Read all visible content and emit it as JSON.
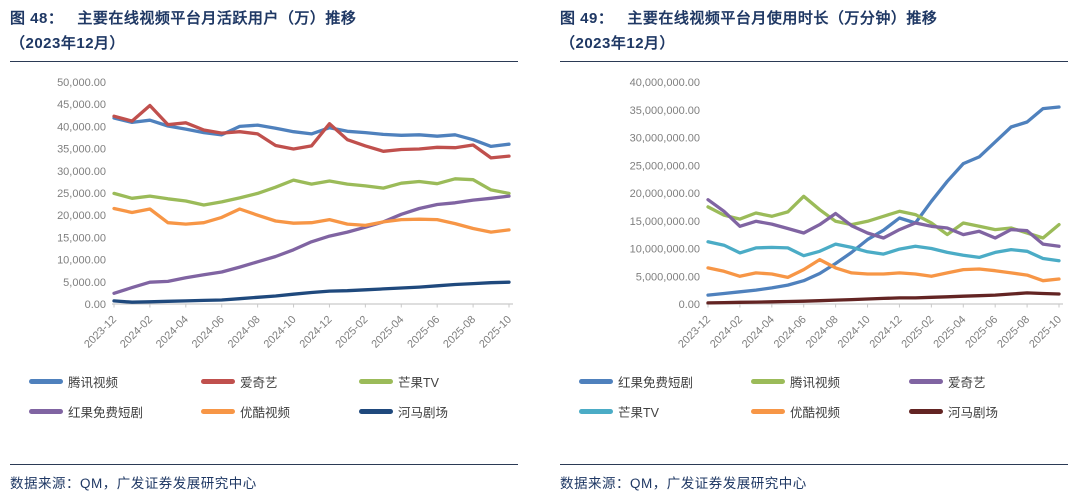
{
  "panels": [
    {
      "figure_label": "图 48：",
      "title": "主要在线视频平台月活跃用户（万）推移",
      "title_line2": "（2023年12月）",
      "source": "数据来源：QM，广发证券发展研究中心"
    },
    {
      "figure_label": "图 49：",
      "title": "主要在线视频平台月使用时长（万分钟）推移",
      "title_line2": "（2023年12月）",
      "source": "数据来源：QM，广发证券发展研究中心"
    }
  ],
  "chart_data": [
    {
      "type": "line",
      "title": "图 48：主要在线视频平台月活跃用户（万）推移（2023年12月）",
      "xlabel": "",
      "ylabel": "",
      "ylim": [
        0,
        50000
      ],
      "ystep": 5000,
      "grid": false,
      "legend_position": "bottom",
      "x": [
        "2023-12",
        "2024-01",
        "2024-02",
        "2024-03",
        "2024-04",
        "2024-05",
        "2024-06",
        "2024-07",
        "2024-08",
        "2024-09",
        "2024-10",
        "2024-11",
        "2024-12",
        "2025-01",
        "2025-02",
        "2025-03",
        "2025-04",
        "2025-05",
        "2025-06",
        "2025-07",
        "2025-08",
        "2025-09",
        "2025-10"
      ],
      "xtick_labels": [
        "2023-12",
        "2024-02",
        "2024-04",
        "2024-06",
        "2024-08",
        "2024-10",
        "2024-12",
        "2025-02",
        "2025-04",
        "2025-06",
        "2025-08",
        "2025-10"
      ],
      "series": [
        {
          "name": "腾讯视频",
          "color": "#4F81BD",
          "values": [
            41900,
            40900,
            41400,
            40100,
            39400,
            38600,
            38100,
            40000,
            40300,
            39600,
            38800,
            38300,
            39700,
            38900,
            38600,
            38200,
            38000,
            38100,
            37800,
            38100,
            37000,
            35500,
            36000
          ]
        },
        {
          "name": "爱奇艺",
          "color": "#C0504D",
          "values": [
            42300,
            41200,
            44700,
            40400,
            40800,
            39200,
            38500,
            38800,
            38300,
            35700,
            34900,
            35600,
            40600,
            37000,
            35600,
            34400,
            34800,
            34900,
            35300,
            35200,
            35800,
            32900,
            33300
          ]
        },
        {
          "name": "芒果TV",
          "color": "#9BBB59",
          "values": [
            24900,
            23800,
            24300,
            23700,
            23200,
            22300,
            23000,
            23900,
            24900,
            26300,
            27900,
            27000,
            27700,
            27000,
            26600,
            26100,
            27200,
            27600,
            27100,
            28200,
            28000,
            25700,
            24900
          ]
        },
        {
          "name": "红果免费短剧",
          "color": "#8064A2",
          "values": [
            2400,
            3700,
            4900,
            5100,
            5900,
            6600,
            7200,
            8300,
            9500,
            10700,
            12200,
            14000,
            15300,
            16200,
            17300,
            18500,
            20200,
            21500,
            22400,
            22800,
            23400,
            23800,
            24300
          ]
        },
        {
          "name": "优酷视频",
          "color": "#F79646",
          "values": [
            21500,
            20600,
            21400,
            18300,
            18000,
            18300,
            19500,
            21400,
            20000,
            18700,
            18200,
            18300,
            19000,
            18000,
            17700,
            18500,
            19000,
            19100,
            19000,
            18100,
            17000,
            16200,
            16700
          ]
        },
        {
          "name": "河马剧场",
          "color": "#1F497D",
          "values": [
            700,
            400,
            500,
            600,
            700,
            800,
            900,
            1200,
            1500,
            1800,
            2200,
            2600,
            2900,
            3000,
            3200,
            3400,
            3600,
            3800,
            4100,
            4400,
            4600,
            4800,
            4900
          ]
        }
      ]
    },
    {
      "type": "line",
      "title": "图 49：主要在线视频平台月使用时长（万分钟）推移（2023年12月）",
      "xlabel": "",
      "ylabel": "",
      "ylim": [
        0,
        40000000
      ],
      "ystep": 5000000,
      "grid": false,
      "legend_position": "bottom",
      "x": [
        "2023-12",
        "2024-01",
        "2024-02",
        "2024-03",
        "2024-04",
        "2024-05",
        "2024-06",
        "2024-07",
        "2024-08",
        "2024-09",
        "2024-10",
        "2024-11",
        "2024-12",
        "2025-01",
        "2025-02",
        "2025-03",
        "2025-04",
        "2025-05",
        "2025-06",
        "2025-07",
        "2025-08",
        "2025-09",
        "2025-10"
      ],
      "xtick_labels": [
        "2023-12",
        "2024-02",
        "2024-04",
        "2024-06",
        "2024-08",
        "2024-10",
        "2024-12",
        "2025-02",
        "2025-04",
        "2025-06",
        "2025-08",
        "2025-10"
      ],
      "series": [
        {
          "name": "红果免费短剧",
          "color": "#4F81BD",
          "values": [
            1600000,
            1900000,
            2200000,
            2500000,
            2900000,
            3400000,
            4200000,
            5500000,
            7300000,
            9300000,
            11600000,
            13300000,
            15500000,
            14600000,
            18500000,
            22100000,
            25300000,
            26500000,
            29200000,
            31900000,
            32800000,
            35200000,
            35500000
          ]
        },
        {
          "name": "腾讯视频",
          "color": "#9BBB59",
          "values": [
            17500000,
            16000000,
            15300000,
            16400000,
            15800000,
            16600000,
            19400000,
            17000000,
            14900000,
            14300000,
            14900000,
            15800000,
            16700000,
            16100000,
            14600000,
            12500000,
            14600000,
            14000000,
            13400000,
            13700000,
            12800000,
            11900000,
            14300000
          ]
        },
        {
          "name": "爱奇艺",
          "color": "#8064A2",
          "values": [
            18800000,
            16700000,
            14000000,
            14900000,
            14400000,
            13600000,
            12800000,
            14300000,
            16300000,
            14100000,
            12800000,
            11900000,
            13400000,
            14600000,
            14000000,
            13700000,
            12500000,
            13100000,
            11900000,
            13400000,
            13200000,
            10800000,
            10400000
          ]
        },
        {
          "name": "芒果TV",
          "color": "#4BACC6",
          "values": [
            11200000,
            10600000,
            9200000,
            10100000,
            10200000,
            10100000,
            8700000,
            9500000,
            10800000,
            10200000,
            9400000,
            9000000,
            9900000,
            10400000,
            10000000,
            9300000,
            8800000,
            8400000,
            9300000,
            9800000,
            9500000,
            8200000,
            7800000
          ]
        },
        {
          "name": "优酷视频",
          "color": "#F79646",
          "values": [
            6500000,
            5900000,
            5000000,
            5600000,
            5400000,
            4800000,
            6200000,
            8000000,
            6500000,
            5600000,
            5400000,
            5400000,
            5600000,
            5400000,
            5000000,
            5600000,
            6200000,
            6300000,
            6000000,
            5600000,
            5200000,
            4200000,
            4500000
          ]
        },
        {
          "name": "河马剧场",
          "color": "#632423",
          "values": [
            200000,
            250000,
            300000,
            350000,
            400000,
            450000,
            500000,
            600000,
            700000,
            800000,
            900000,
            1000000,
            1100000,
            1100000,
            1200000,
            1300000,
            1400000,
            1500000,
            1600000,
            1800000,
            2000000,
            1900000,
            1800000
          ]
        }
      ]
    }
  ],
  "style": {
    "title_color": "#1F3864",
    "axis_label_color": "#7F7F7F",
    "axis_line_color": "#C9C9C9"
  }
}
